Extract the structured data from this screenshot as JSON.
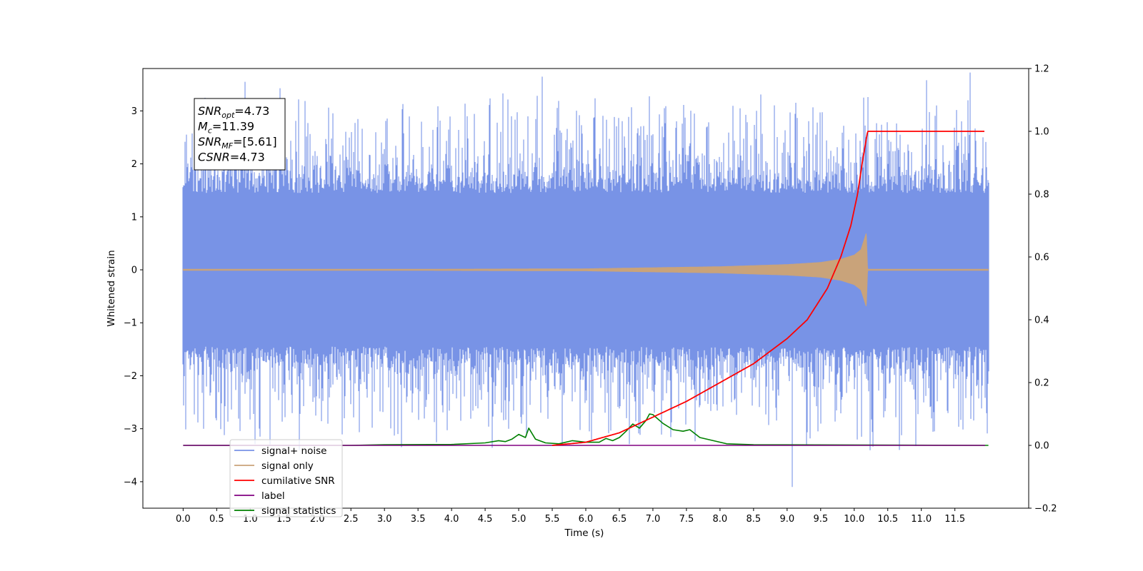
{
  "chart_data": {
    "type": "line",
    "xlabel": "Time (s)",
    "ylabel": "Whitened strain",
    "xlim": [
      -0.6,
      12.6
    ],
    "ylim": [
      -4.5,
      3.8
    ],
    "ylim_right": [
      -0.2,
      1.2
    ],
    "x_ticks": [
      0.0,
      0.5,
      1.0,
      1.5,
      2.0,
      2.5,
      3.0,
      3.5,
      4.0,
      4.5,
      5.0,
      5.5,
      6.0,
      6.5,
      7.0,
      7.5,
      8.0,
      8.5,
      9.0,
      9.5,
      10.0,
      10.5,
      11.0,
      11.5
    ],
    "x_tick_labels": [
      "0.0",
      "0.5",
      "1.0",
      "1.5",
      "2.0",
      "2.5",
      "3.0",
      "3.5",
      "4.0",
      "4.5",
      "5.0",
      "5.5",
      "6.0",
      "6.5",
      "7.0",
      "7.5",
      "8.0",
      "8.5",
      "9.0",
      "9.5",
      "10.0",
      "10.5",
      "11.0",
      "11.5"
    ],
    "y_ticks": [
      3,
      2,
      1,
      0,
      -1,
      -2,
      -3,
      -4
    ],
    "y_tick_labels": [
      "3",
      "2",
      "1",
      "0",
      "−1",
      "−2",
      "−3",
      "−4"
    ],
    "y_ticks_right": [
      1.2,
      1.0,
      0.8,
      0.6,
      0.4,
      0.2,
      0.0,
      -0.2
    ],
    "y_tick_labels_right": [
      "1.2",
      "1.0",
      "0.8",
      "0.6",
      "0.4",
      "0.2",
      "0.0",
      "−0.2"
    ],
    "grid": false,
    "legend_position": "bottom-left",
    "annotation": {
      "lines": [
        {
          "sym": "SNR",
          "sub": "opt",
          "value": "=4.73"
        },
        {
          "sym": "M",
          "sub": "c",
          "value": "=11.39"
        },
        {
          "sym": "SNR",
          "sub": "MF",
          "value": "=[5.61]"
        },
        {
          "sym": "CSNR",
          "sub": "",
          "value": "=4.73"
        }
      ]
    },
    "series": [
      {
        "name": "signal+ noise",
        "color": "#7893e6",
        "axis": "left",
        "kind": "noise",
        "x_range": [
          0.0,
          12.0
        ],
        "typical_range": [
          -1.7,
          1.6
        ],
        "extremes": [
          {
            "x": 0.92,
            "y": 3.55
          },
          {
            "x": 9.08,
            "y": -4.1
          },
          {
            "x": 10.14,
            "y": 3.25
          },
          {
            "x": 1.29,
            "y": -3.3
          },
          {
            "x": 10.67,
            "y": -3.4
          },
          {
            "x": 5.6,
            "y": 3.05
          },
          {
            "x": 8.3,
            "y": 3.05
          },
          {
            "x": 3.2,
            "y": -3.1
          },
          {
            "x": 0.3,
            "y": -3.0
          },
          {
            "x": 11.2,
            "y": -3.05
          },
          {
            "x": 4.85,
            "y": -3.0
          },
          {
            "x": 6.05,
            "y": -2.9
          }
        ]
      },
      {
        "name": "signal only",
        "color": "#c9a37a",
        "axis": "left",
        "kind": "chirp",
        "x": [
          0.0,
          6.0,
          7.0,
          8.0,
          8.5,
          9.0,
          9.5,
          9.8,
          10.0,
          10.1,
          10.18,
          10.2,
          12.0
        ],
        "envelope": [
          0.0,
          0.02,
          0.04,
          0.06,
          0.08,
          0.1,
          0.14,
          0.2,
          0.28,
          0.38,
          0.7,
          0.0,
          0.0
        ]
      },
      {
        "name": "cumilative SNR",
        "color": "#ff0000",
        "axis": "right",
        "x": [
          5.5,
          6.0,
          6.5,
          7.0,
          7.5,
          8.0,
          8.5,
          9.0,
          9.3,
          9.6,
          9.8,
          9.95,
          10.05,
          10.12,
          10.2,
          11.95
        ],
        "values": [
          0.0,
          0.01,
          0.04,
          0.09,
          0.14,
          0.2,
          0.26,
          0.34,
          0.4,
          0.5,
          0.6,
          0.7,
          0.8,
          0.9,
          1.0,
          1.0
        ]
      },
      {
        "name": "label",
        "color": "#800080",
        "axis": "right",
        "x": [
          0.0,
          11.95
        ],
        "values": [
          0.0,
          0.0
        ]
      },
      {
        "name": "signal statistics",
        "color": "#008000",
        "axis": "right",
        "x": [
          0.0,
          2.5,
          3.0,
          4.0,
          4.5,
          4.7,
          4.8,
          4.9,
          5.0,
          5.1,
          5.15,
          5.25,
          5.4,
          5.6,
          5.8,
          6.0,
          6.2,
          6.3,
          6.4,
          6.5,
          6.6,
          6.7,
          6.8,
          6.9,
          6.95,
          7.0,
          7.15,
          7.3,
          7.45,
          7.55,
          7.7,
          7.9,
          8.1,
          8.5,
          12.0
        ],
        "values": [
          0.0,
          0.0,
          0.002,
          0.003,
          0.008,
          0.015,
          0.012,
          0.02,
          0.035,
          0.025,
          0.055,
          0.02,
          0.008,
          0.005,
          0.015,
          0.01,
          0.01,
          0.022,
          0.015,
          0.025,
          0.045,
          0.068,
          0.055,
          0.08,
          0.1,
          0.098,
          0.07,
          0.05,
          0.045,
          0.05,
          0.025,
          0.015,
          0.005,
          0.002,
          0.0
        ]
      }
    ]
  }
}
